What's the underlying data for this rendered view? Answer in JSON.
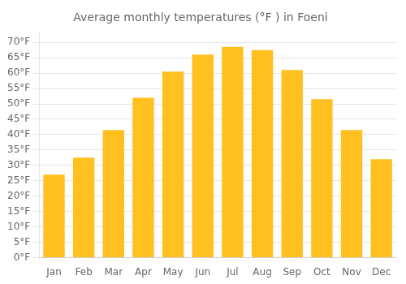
{
  "chart_data": {
    "type": "bar",
    "title": "Average monthly temperatures (°F ) in Foeni",
    "categories": [
      "Jan",
      "Feb",
      "Mar",
      "Apr",
      "May",
      "Jun",
      "Jul",
      "Aug",
      "Sep",
      "Oct",
      "Nov",
      "Dec"
    ],
    "values": [
      27,
      32.5,
      41.5,
      52,
      60.5,
      66,
      68.5,
      67.5,
      61,
      51.5,
      41.5,
      32
    ],
    "color": "#FFC020",
    "ylim": [
      0,
      73
    ],
    "yticks": [
      {
        "value": 0,
        "label": "0°F"
      },
      {
        "value": 5,
        "label": "5°F"
      },
      {
        "value": 10,
        "label": "10°F"
      },
      {
        "value": 15,
        "label": "15°F"
      },
      {
        "value": 20,
        "label": "20°F"
      },
      {
        "value": 25,
        "label": "25°F"
      },
      {
        "value": 30,
        "label": "30°F"
      },
      {
        "value": 35,
        "label": "35°F"
      },
      {
        "value": 40,
        "label": "40°F"
      },
      {
        "value": 45,
        "label": "45°F"
      },
      {
        "value": 50,
        "label": "50°F"
      },
      {
        "value": 55,
        "label": "55°F"
      },
      {
        "value": 60,
        "label": "60°F"
      },
      {
        "value": 65,
        "label": "65°F"
      },
      {
        "value": 70,
        "label": "70°F"
      }
    ],
    "grid": true
  }
}
